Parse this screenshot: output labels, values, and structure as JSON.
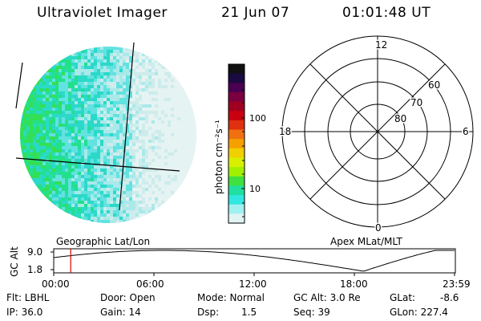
{
  "header": {
    "title": "Ultraviolet Imager",
    "date": "21 Jun 07",
    "time": "01:01:48 UT"
  },
  "geo_image": {
    "label": "Geographic Lat/Lon",
    "palette": [
      "#e6f3f3",
      "#cdeceb",
      "#a9e9ea",
      "#62e2e0",
      "#2bd9c9",
      "#22e08c",
      "#33e055"
    ]
  },
  "colorbar": {
    "ticks": [
      "100",
      "10"
    ],
    "unit_label": "photon cm⁻²s⁻¹",
    "colors": [
      "#111111",
      "#1a0a40",
      "#4a0050",
      "#7a0040",
      "#a00020",
      "#c80010",
      "#e03010",
      "#f07010",
      "#f5a000",
      "#f0d000",
      "#d8f000",
      "#a0f000",
      "#40e040",
      "#20e0a0",
      "#30e8e0",
      "#a0f0f0",
      "#e0f4f4"
    ]
  },
  "polar_plot": {
    "label": "Apex MLat/MLT",
    "mlt_labels": {
      "top": "12",
      "left": "18",
      "right": "6",
      "bottom": "0"
    },
    "lat_labels": [
      "60",
      "70",
      "80"
    ]
  },
  "altitude_plot": {
    "ylabel": "GC Alt",
    "y_ticks": [
      "9.0",
      "1.8"
    ],
    "x_ticks": [
      "00:00",
      "06:00",
      "12:00",
      "18:00",
      "23:59"
    ],
    "marker_time": "01:01",
    "marker_color": "#dd0000"
  },
  "info": {
    "flt": "Flt: LBHL",
    "ip": "IP: 36.0",
    "door": "Door: Open",
    "gain": "Gain: 14",
    "mode": "Mode: Normal",
    "dsp_label": "Dsp:",
    "dsp_value": "1.5",
    "gc_alt": "GC Alt: 3.0 Re",
    "seq": "Seq: 39",
    "glat_label": "GLat:",
    "glat_value": "-8.6",
    "glon": "GLon: 227.4"
  }
}
